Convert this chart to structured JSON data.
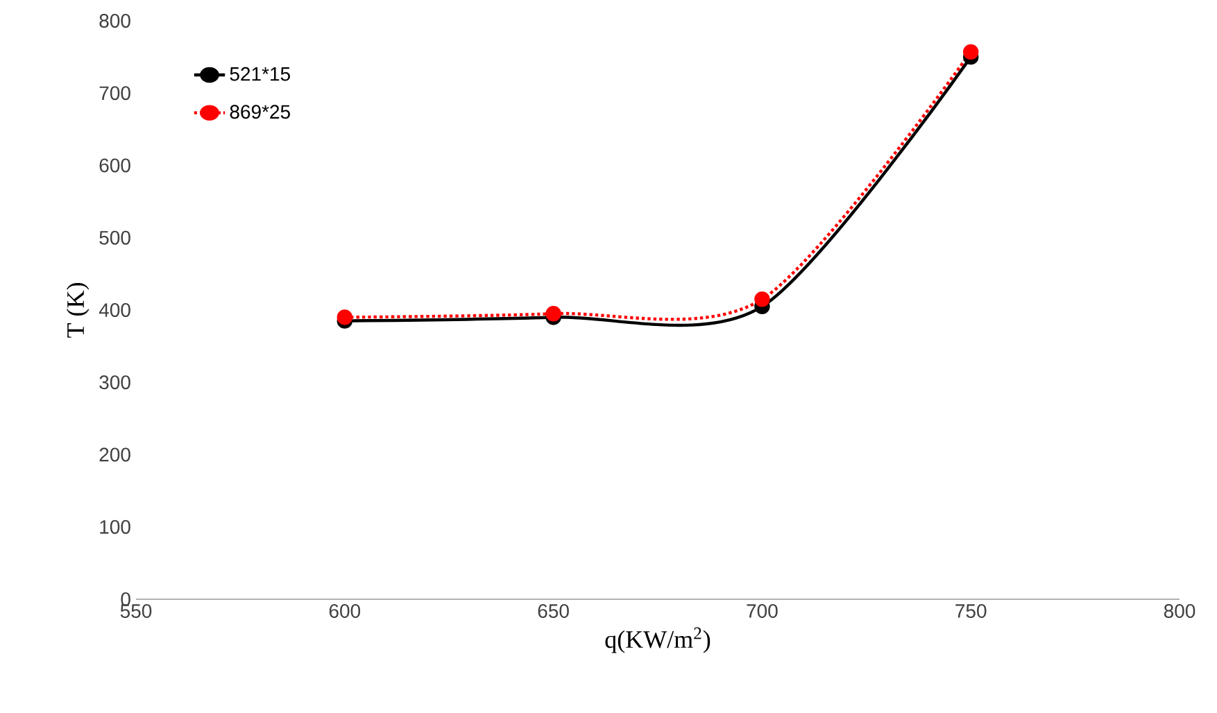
{
  "chart_data": {
    "type": "line",
    "xlabel": "q(KW/m$^{2}$)",
    "ylabel": "T (K)",
    "x": [
      600,
      650,
      700,
      750
    ],
    "series": [
      {
        "name": "521*15",
        "color": "#000000",
        "values": [
          385,
          390,
          405,
          750
        ],
        "line_style": "solid"
      },
      {
        "name": "869*25",
        "color": "#ff0000",
        "values": [
          390,
          395,
          415,
          757
        ],
        "line_style": "dotted"
      }
    ],
    "xlim": [
      550,
      800
    ],
    "xticks": [
      550,
      600,
      650,
      700,
      750,
      800
    ],
    "ylim": [
      0,
      800
    ],
    "yticks": [
      0,
      100,
      200,
      300,
      400,
      500,
      600,
      700,
      800
    ],
    "marker": "circle",
    "legend": "top left"
  }
}
